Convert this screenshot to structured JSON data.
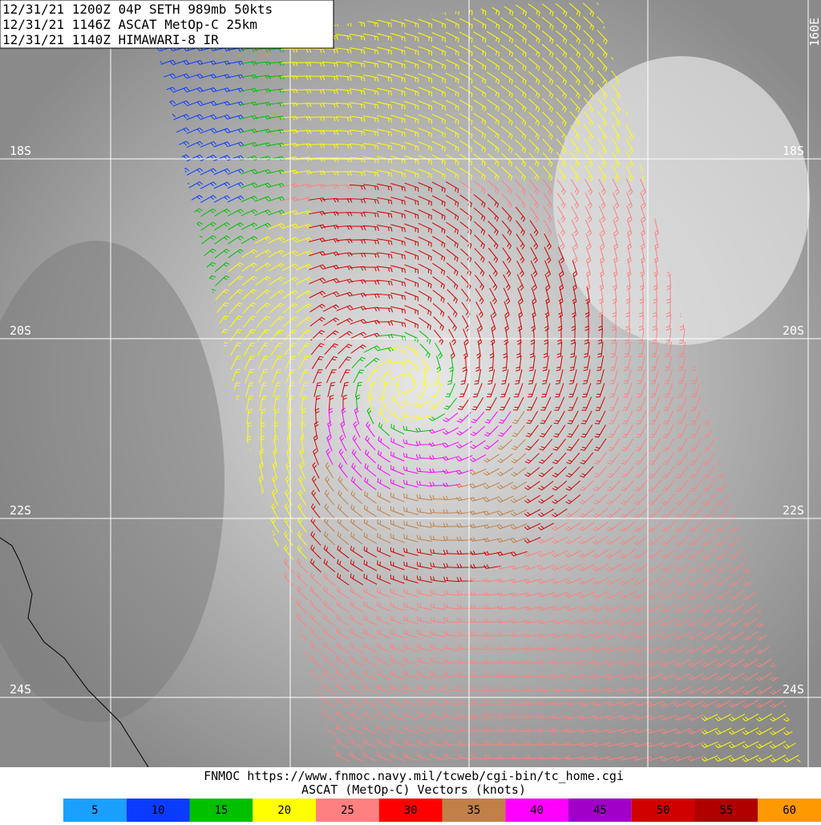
{
  "header": {
    "lines": [
      "12/31/21 1200Z  04P SETH 989mb 50kts",
      "12/31/21 1146Z  ASCAT MetOp-C 25km",
      "12/31/21 1140Z  HIMAWARI-8 IR"
    ]
  },
  "map": {
    "lat_labels": [
      "18S",
      "20S",
      "22S",
      "24S"
    ],
    "lon_label": "160E"
  },
  "footer": {
    "url": "FNMOC https://www.fnmoc.navy.mil/tcweb/cgi-bin/tc_home.cgi",
    "caption": "ASCAT (MetOp-C) Vectors (knots)"
  },
  "legend": [
    {
      "label": "5",
      "color": "#1aa0ff"
    },
    {
      "label": "10",
      "color": "#0a3cff"
    },
    {
      "label": "15",
      "color": "#00c000"
    },
    {
      "label": "20",
      "color": "#ffff00"
    },
    {
      "label": "25",
      "color": "#ff8080"
    },
    {
      "label": "30",
      "color": "#ff0000"
    },
    {
      "label": "35",
      "color": "#c08048"
    },
    {
      "label": "40",
      "color": "#ff00ff"
    },
    {
      "label": "45",
      "color": "#a000c8"
    },
    {
      "label": "50",
      "color": "#d00000"
    },
    {
      "label": "55",
      "color": "#b00000"
    },
    {
      "label": "60",
      "color": "#ff9900"
    }
  ]
}
